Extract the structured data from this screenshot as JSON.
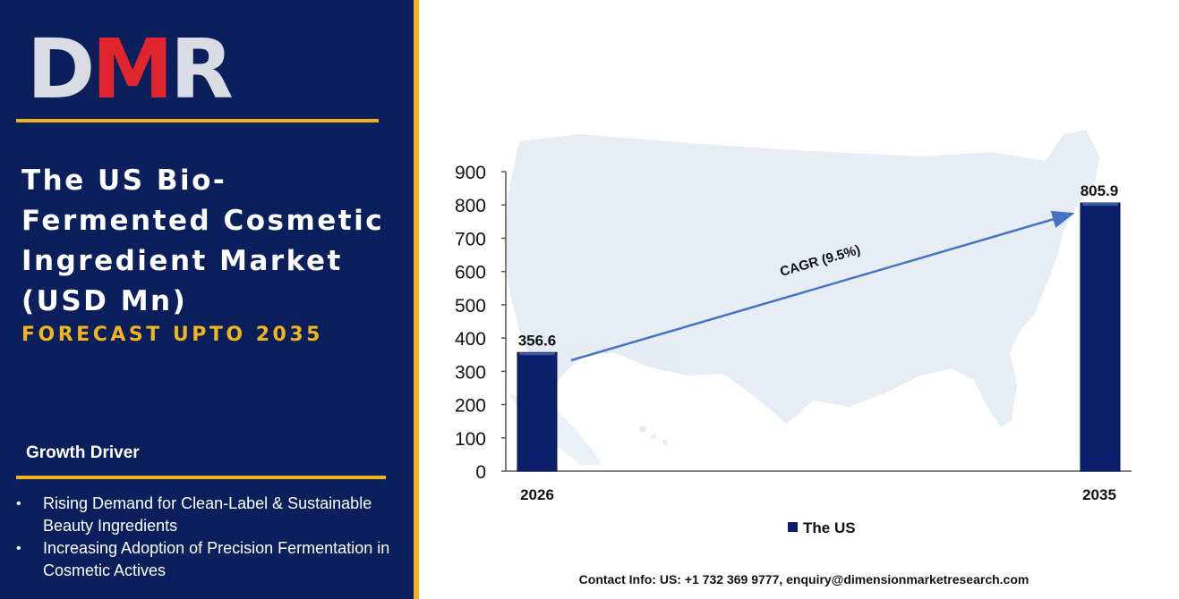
{
  "logo": {
    "d": "D",
    "m": "M",
    "r": "R"
  },
  "title": "The US Bio-Fermented Cosmetic Ingredient Market (USD Mn)",
  "subtitle": "FORECAST UPTO 2035",
  "growth_driver": {
    "heading": "Growth Driver",
    "items": [
      "Rising Demand for Clean-Label & Sustainable Beauty Ingredients",
      "Increasing Adoption of Precision Fermentation in Cosmetic Actives"
    ]
  },
  "contact": "Contact Info: US: +1 732 369 9777, enquiry@dimensionmarketresearch.com",
  "colors": {
    "panel": "#0a1f5c",
    "accent": "#f0b41c",
    "bar": "#0b1f6b",
    "arrow": "#4472c4",
    "logo_red": "#e0262c"
  },
  "chart_data": {
    "type": "bar",
    "categories": [
      "2026",
      "2035"
    ],
    "series": [
      {
        "name": "The US",
        "values": [
          356.6,
          805.9
        ]
      }
    ],
    "data_labels": [
      "356.6",
      "805.9"
    ],
    "ylim": [
      0,
      900
    ],
    "y_ticks": [
      0,
      100,
      200,
      300,
      400,
      500,
      600,
      700,
      800,
      900
    ],
    "annotation": "CAGR (9.5%)",
    "legend": "bottom",
    "grid": false
  }
}
